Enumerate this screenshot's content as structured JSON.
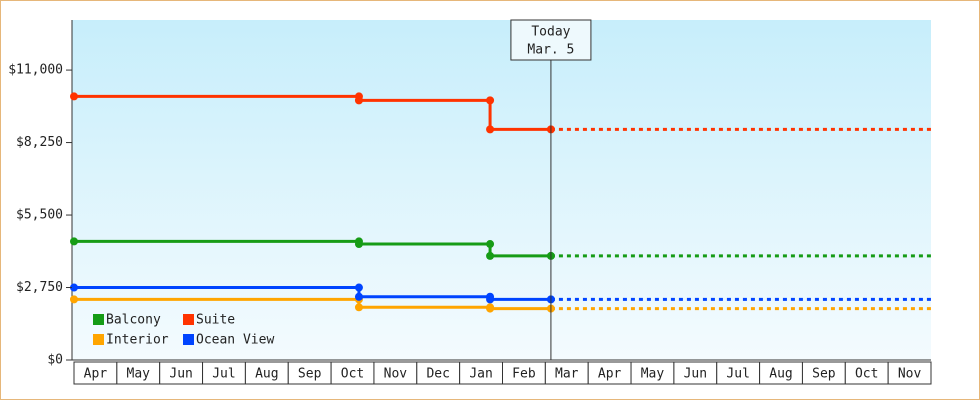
{
  "chart_data": {
    "type": "step-line",
    "categories": [
      "Apr",
      "May",
      "Jun",
      "Jul",
      "Aug",
      "Sep",
      "Oct",
      "Nov",
      "Dec",
      "Jan",
      "Feb",
      "Mar",
      "Apr",
      "May",
      "Jun",
      "Jul",
      "Aug",
      "Sep",
      "Oct",
      "Nov"
    ],
    "xlim": [
      0,
      20
    ],
    "ylim": [
      0,
      12900
    ],
    "yticks": [
      {
        "value": 0,
        "label": "$0"
      },
      {
        "value": 2750,
        "label": "$2,750"
      },
      {
        "value": 5500,
        "label": "$5,500"
      },
      {
        "value": 8250,
        "label": "$8,250"
      },
      {
        "value": 11000,
        "label": "$11,000"
      }
    ],
    "today": {
      "label": "Today",
      "date": "Mar. 5",
      "x": 11.13
    },
    "series": [
      {
        "name": "Balcony",
        "color": "#169c16",
        "x": [
          0,
          6.65,
          6.65,
          9.71,
          9.71,
          11.13
        ],
        "values": [
          4500,
          4500,
          4400,
          4400,
          3950,
          3950
        ]
      },
      {
        "name": "Suite",
        "color": "#ff3300",
        "x": [
          0,
          6.65,
          6.65,
          9.71,
          9.71,
          11.13
        ],
        "values": [
          10000,
          10000,
          9850,
          9850,
          8750,
          8750
        ]
      },
      {
        "name": "Interior",
        "color": "#ffa500",
        "x": [
          0,
          6.65,
          6.65,
          9.71,
          9.71,
          11.13
        ],
        "values": [
          2300,
          2300,
          2000,
          2000,
          1950,
          1950
        ]
      },
      {
        "name": "Ocean View",
        "color": "#0044ff",
        "x": [
          0,
          6.65,
          6.65,
          9.71,
          9.71,
          11.13
        ],
        "values": [
          2750,
          2750,
          2400,
          2400,
          2300,
          2300
        ]
      }
    ]
  }
}
